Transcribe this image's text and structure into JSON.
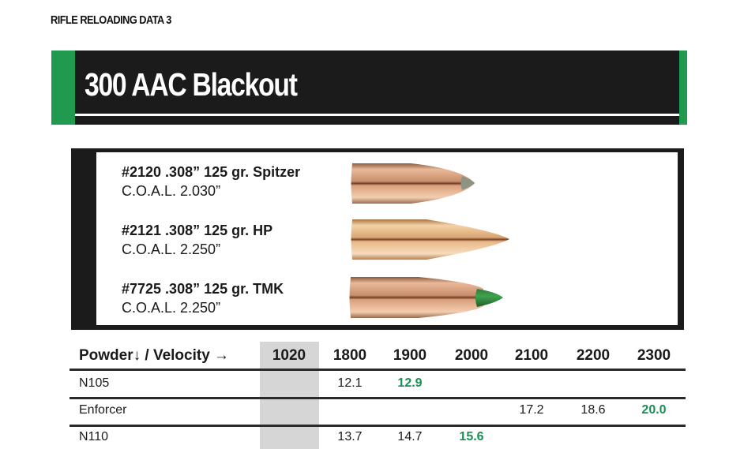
{
  "section_header": "RIFLE RELOADING DATA 3",
  "title": "300 AAC Blackout",
  "colors": {
    "accent_green": "#1f9a4e",
    "banner_black": "#1c1b1b",
    "max_load_green": "#1a8f52"
  },
  "bullets": [
    {
      "name": "#2120 .308” 125 gr. Spitzer",
      "coal": "C.O.A.L. 2.030”",
      "tip": "grey"
    },
    {
      "name": "#2121 .308” 125 gr. HP",
      "coal": "C.O.A.L. 2.250”",
      "tip": "hollow point"
    },
    {
      "name": "#7725 .308” 125 gr. TMK",
      "coal": "C.O.A.L. 2.250”",
      "tip": "green"
    }
  ],
  "table": {
    "header": "Powder↓ / Velocity →",
    "velocities": [
      "1020",
      "1800",
      "1900",
      "2000",
      "2100",
      "2200",
      "2300"
    ],
    "rows": [
      {
        "powder": "N105",
        "values": [
          "",
          "12.1",
          "12.9",
          "",
          "",
          "",
          ""
        ],
        "max_index": 2
      },
      {
        "powder": "Enforcer",
        "values": [
          "",
          "",
          "",
          "",
          "17.2",
          "18.6",
          "20.0"
        ],
        "max_index": 6
      },
      {
        "powder": "N110",
        "values": [
          "",
          "13.7",
          "14.7",
          "15.6",
          "",
          "",
          ""
        ],
        "max_index": 3
      }
    ]
  }
}
